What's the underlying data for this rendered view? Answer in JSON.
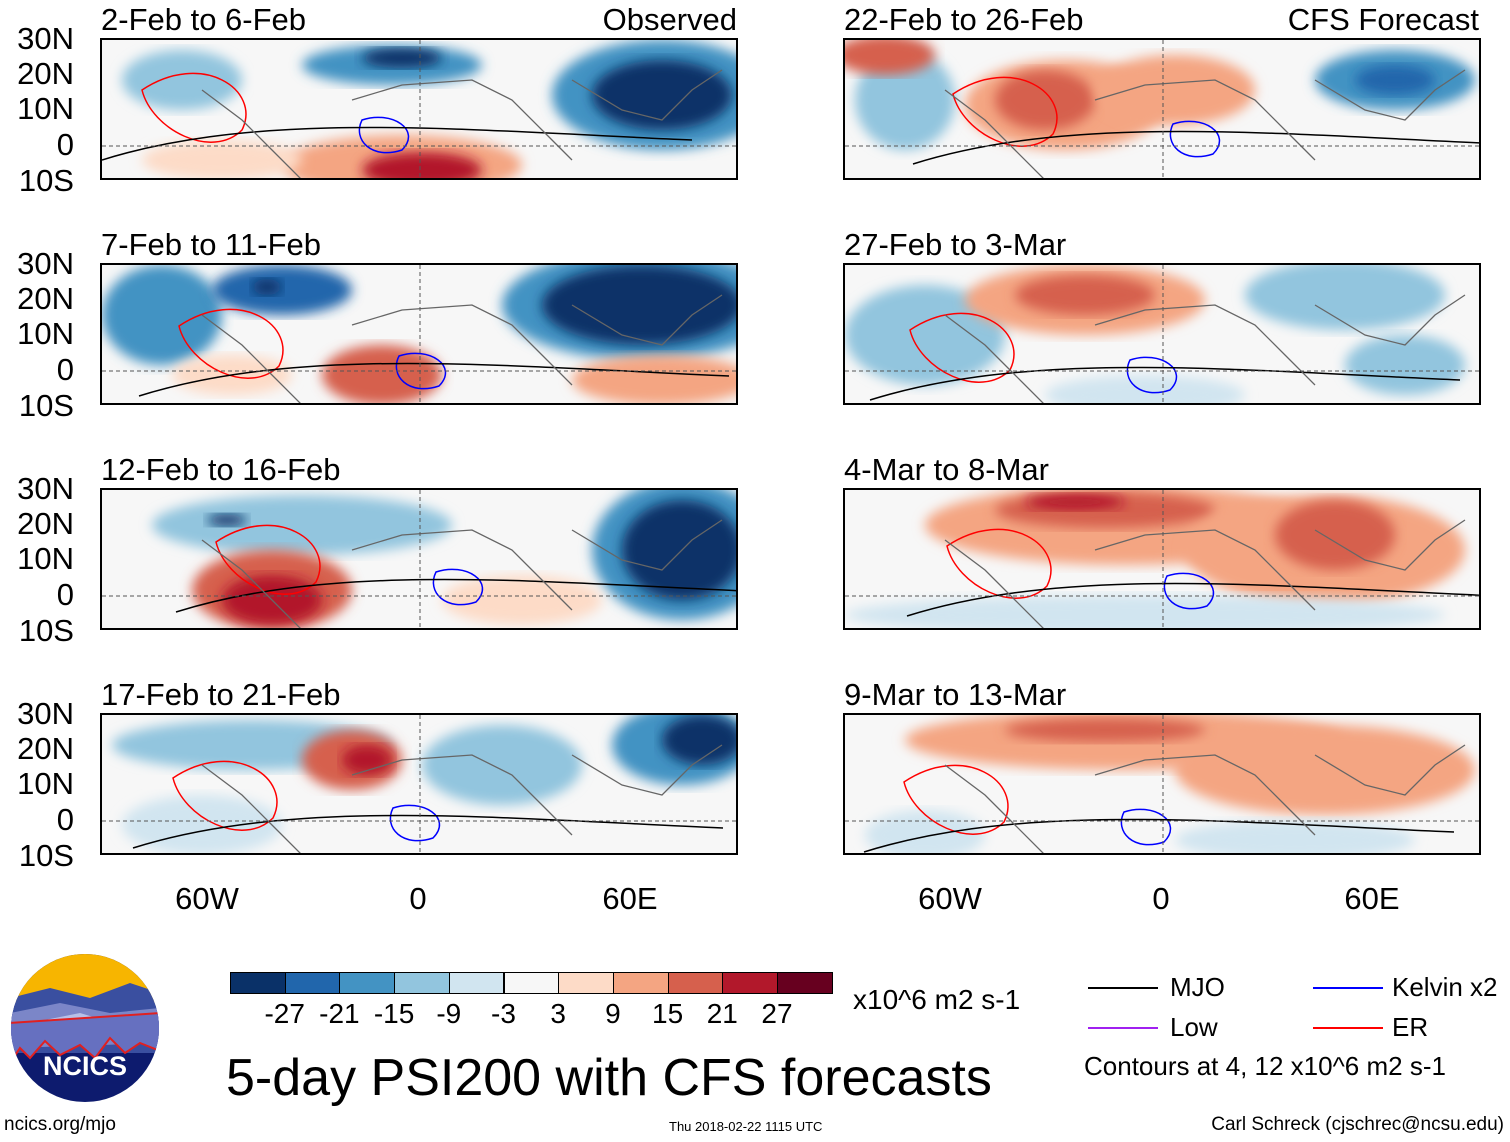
{
  "figure_title": "5-day PSI200 with CFS forecasts",
  "headers": {
    "observed": "Observed",
    "forecast": "CFS Forecast"
  },
  "panels_left": [
    {
      "title": "2-Feb to 6-Feb"
    },
    {
      "title": "7-Feb to 11-Feb"
    },
    {
      "title": "12-Feb to 16-Feb"
    },
    {
      "title": "17-Feb to 21-Feb"
    }
  ],
  "panels_right": [
    {
      "title": "22-Feb to 26-Feb"
    },
    {
      "title": "27-Feb to 3-Mar"
    },
    {
      "title": "4-Mar to 8-Mar"
    },
    {
      "title": "9-Mar to 13-Mar"
    }
  ],
  "lat_labels": [
    "30N",
    "20N",
    "10N",
    "0",
    "10S"
  ],
  "lon_labels": [
    "60W",
    "0",
    "60E"
  ],
  "colorbar": {
    "colors": [
      "#0a3168",
      "#2166ac",
      "#4393c3",
      "#92c5de",
      "#d1e5f0",
      "#f7f7f7",
      "#fddbc7",
      "#f4a582",
      "#d6604d",
      "#b2182b",
      "#67001f"
    ],
    "labels": [
      "-27",
      "-21",
      "-15",
      "-9",
      "-3",
      "3",
      "9",
      "15",
      "21",
      "27"
    ],
    "units": "x10^6 m2 s-1"
  },
  "legend": {
    "items": [
      {
        "label": "MJO",
        "color": "#000000"
      },
      {
        "label": "Kelvin x2",
        "color": "#0000ff"
      },
      {
        "label": "Low",
        "color": "#a020f0"
      },
      {
        "label": "ER",
        "color": "#ff0000"
      }
    ],
    "contours_note": "Contours at 4, 12 x10^6 m2 s-1"
  },
  "logo": {
    "text": "NCICS"
  },
  "footer": {
    "url": "ncics.org/mjo",
    "timestamp": "Thu 2018-02-22 1115 UTC",
    "credit": "Carl Schreck (cjschrec@ncsu.edu)"
  }
}
